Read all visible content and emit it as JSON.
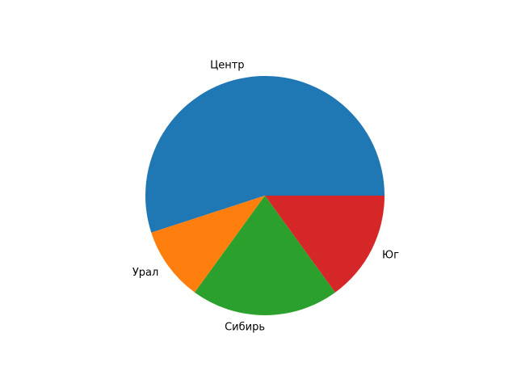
{
  "chart_data": {
    "type": "pie",
    "categories": [
      "Центр",
      "Урал",
      "Сибирь",
      "Юг"
    ],
    "values": [
      55,
      10,
      20,
      15
    ],
    "colors": [
      "#1f77b4",
      "#ff7f0e",
      "#2ca02c",
      "#d62728"
    ],
    "start_angle": 0,
    "direction": "counterclockwise",
    "title": ""
  }
}
